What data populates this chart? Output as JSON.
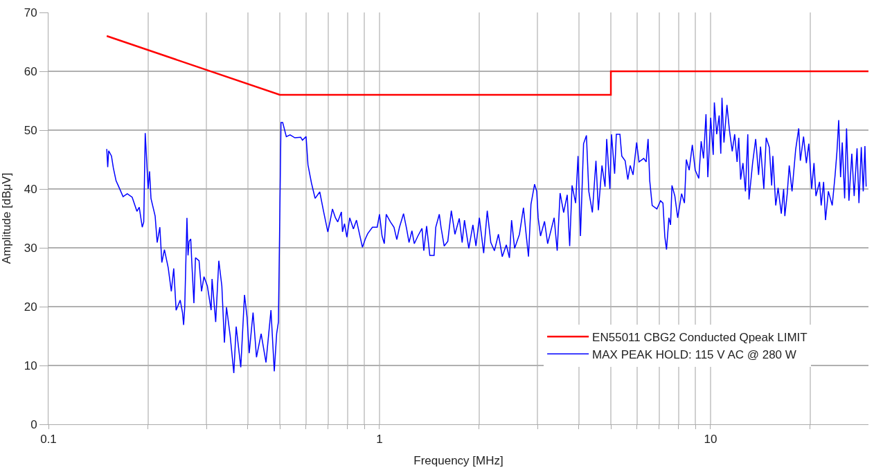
{
  "chart_data": {
    "type": "line",
    "xlabel": "Frequency [MHz]",
    "ylabel": "Amplitude [dBμV]",
    "log": "x",
    "xlim": [
      0.1,
      30
    ],
    "ylim": [
      0,
      70
    ],
    "xticks": [
      0.1,
      {
        "value": 0.2,
        "label": null
      },
      {
        "value": 0.3,
        "label": null
      },
      {
        "value": 0.4,
        "label": null
      },
      {
        "value": 0.5,
        "label": null
      },
      {
        "value": 0.6,
        "label": null
      },
      {
        "value": 0.7,
        "label": null
      },
      {
        "value": 0.8,
        "label": null
      },
      {
        "value": 0.9,
        "label": null
      },
      1,
      {
        "value": 2,
        "label": null
      },
      {
        "value": 3,
        "label": null
      },
      {
        "value": 4,
        "label": null
      },
      {
        "value": 5,
        "label": null
      },
      {
        "value": 6,
        "label": null
      },
      {
        "value": 7,
        "label": null
      },
      {
        "value": 8,
        "label": null
      },
      {
        "value": 9,
        "label": null
      },
      10,
      {
        "value": 20,
        "label": null
      }
    ],
    "yticks": [
      0,
      10,
      20,
      30,
      40,
      50,
      60,
      70
    ],
    "grid": true,
    "legend": "bottom right",
    "series": [
      {
        "name": "EN55011 CBG2 Conducted Qpeak LIMIT",
        "color": "#ff0000",
        "x": [
          0.15,
          0.5,
          5,
          5,
          30
        ],
        "values": [
          66,
          56,
          56,
          60,
          60
        ]
      },
      {
        "name": "MAX PEAK HOLD: 115 V AC @ 280 W",
        "color": "#0000ff",
        "x": [
          0.15,
          0.151,
          0.152,
          0.155,
          0.157,
          0.16,
          0.163,
          0.168,
          0.173,
          0.179,
          0.185,
          0.188,
          0.192,
          0.194,
          0.196,
          0.198,
          0.2,
          0.202,
          0.204,
          0.21,
          0.213,
          0.217,
          0.22,
          0.224,
          0.23,
          0.235,
          0.239,
          0.243,
          0.25,
          0.254,
          0.256,
          0.258,
          0.262,
          0.264,
          0.266,
          0.269,
          0.271,
          0.275,
          0.278,
          0.285,
          0.29,
          0.295,
          0.302,
          0.31,
          0.312,
          0.32,
          0.327,
          0.334,
          0.34,
          0.345,
          0.354,
          0.363,
          0.369,
          0.381,
          0.391,
          0.398,
          0.404,
          0.415,
          0.425,
          0.439,
          0.454,
          0.47,
          0.481,
          0.489,
          0.495,
          0.499,
          0.504,
          0.51,
          0.523,
          0.537,
          0.555,
          0.578,
          0.585,
          0.6,
          0.608,
          0.623,
          0.639,
          0.66,
          0.677,
          0.698,
          0.709,
          0.721,
          0.736,
          0.748,
          0.767,
          0.773,
          0.784,
          0.797,
          0.813,
          0.834,
          0.852,
          0.872,
          0.888,
          0.906,
          0.921,
          0.952,
          0.984,
          1.0,
          1.018,
          1.034,
          1.048,
          1.079,
          1.106,
          1.128,
          1.149,
          1.182,
          1.208,
          1.228,
          1.253,
          1.274,
          1.306,
          1.344,
          1.361,
          1.388,
          1.419,
          1.462,
          1.479,
          1.516,
          1.534,
          1.568,
          1.608,
          1.648,
          1.69,
          1.742,
          1.777,
          1.806,
          1.861,
          1.915,
          1.956,
          2.003,
          2.064,
          2.116,
          2.169,
          2.224,
          2.287,
          2.349,
          2.416,
          2.469,
          2.506,
          2.56,
          2.647,
          2.722,
          2.773,
          2.819,
          2.868,
          2.941,
          2.985,
          3.015,
          3.065,
          3.152,
          3.221,
          3.369,
          3.442,
          3.512,
          3.6,
          3.691,
          3.754,
          3.817,
          3.913,
          3.979,
          4.047,
          4.135,
          4.218,
          4.288,
          4.396,
          4.507,
          4.584,
          4.7,
          4.801,
          4.857,
          4.966,
          5.022,
          5.132,
          5.194,
          5.325,
          5.394,
          5.522,
          5.625,
          5.719,
          5.834,
          5.981,
          6.08,
          6.285,
          6.391,
          6.477,
          6.552,
          6.664,
          6.888,
          7.062,
          7.183,
          7.276,
          7.364,
          7.486,
          7.573,
          7.648,
          7.802,
          7.959,
          8.176,
          8.341,
          8.45,
          8.621,
          8.811,
          8.989,
          9.217,
          9.371,
          9.526,
          9.69,
          9.815,
          10.01,
          10.19,
          10.27,
          10.44,
          10.62,
          10.74,
          10.83,
          10.98,
          11.21,
          11.4,
          11.63,
          11.83,
          12.03,
          12.17,
          12.33,
          12.53,
          12.75,
          12.96,
          13.07,
          13.4,
          13.69,
          13.97,
          14.16,
          14.49,
          14.73,
          15.05,
          15.3,
          15.43,
          15.74,
          16.0,
          16.36,
          16.63,
          16.77,
          17.05,
          17.29,
          17.63,
          18.08,
          18.47,
          18.68,
          19.1,
          19.48,
          19.81,
          20.21,
          20.54,
          20.82,
          21.35,
          21.59,
          21.96,
          22.25,
          22.7,
          23.32,
          23.79,
          24.1,
          24.39,
          24.71,
          25.0,
          25.42,
          25.76,
          26.19,
          26.72,
          27.16,
          27.71,
          28.08,
          28.54,
          28.93,
          29.27,
          29.52
        ],
        "values": [
          46.8,
          43.7,
          46.5,
          45.6,
          43.6,
          41.4,
          40.4,
          38.7,
          39.2,
          38.6,
          36.2,
          36.9,
          33.5,
          34.4,
          49.5,
          44.8,
          40.0,
          43.0,
          38.4,
          35.4,
          30.9,
          33.5,
          27.5,
          29.7,
          26.6,
          22.6,
          26.5,
          19.4,
          21.1,
          19.0,
          16.9,
          19.9,
          35.1,
          28.7,
          31.1,
          31.5,
          27.5,
          20.6,
          28.3,
          27.8,
          22.6,
          25.1,
          23.5,
          19.4,
          24.7,
          17.4,
          27.8,
          23.5,
          13.9,
          19.9,
          15.0,
          8.7,
          16.6,
          9.7,
          22.0,
          18.2,
          12.1,
          19.0,
          11.4,
          15.4,
          10.5,
          19.4,
          9.0,
          15.4,
          17.4,
          32.3,
          51.3,
          51.3,
          48.9,
          49.2,
          48.7,
          48.8,
          48.3,
          48.9,
          44.1,
          41.0,
          38.4,
          39.5,
          36.3,
          32.7,
          34.5,
          36.6,
          35.1,
          34.4,
          36.1,
          32.7,
          34.1,
          31.8,
          35.1,
          33.2,
          34.7,
          32.1,
          30.1,
          31.5,
          32.4,
          33.5,
          33.5,
          35.7,
          32.0,
          30.7,
          35.7,
          34.4,
          33.5,
          31.4,
          33.5,
          35.8,
          33.2,
          30.9,
          32.9,
          30.7,
          32.0,
          33.3,
          29.5,
          33.7,
          28.7,
          28.7,
          33.5,
          35.7,
          33.5,
          30.3,
          31.1,
          36.3,
          32.3,
          35.0,
          30.9,
          34.7,
          29.9,
          33.9,
          30.3,
          35.1,
          29.1,
          36.3,
          30.9,
          29.5,
          32.3,
          28.5,
          30.5,
          28.3,
          34.7,
          29.9,
          32.3,
          36.8,
          32.3,
          28.5,
          37.4,
          40.8,
          39.6,
          35.1,
          32.0,
          34.5,
          30.7,
          35.1,
          29.5,
          39.3,
          36.0,
          39.0,
          30.3,
          40.6,
          37.6,
          45.6,
          32.0,
          47.7,
          49.1,
          39.6,
          36.0,
          44.8,
          36.4,
          44.0,
          40.4,
          48.5,
          40.0,
          49.3,
          42.6,
          49.3,
          49.3,
          45.6,
          44.8,
          41.6,
          44.0,
          42.4,
          47.9,
          44.6,
          45.2,
          44.6,
          48.5,
          41.4,
          37.2,
          36.6,
          38.0,
          37.6,
          31.9,
          29.7,
          35.1,
          33.9,
          40.6,
          38.8,
          35.1,
          39.2,
          37.6,
          45.0,
          43.2,
          47.5,
          43.2,
          41.8,
          48.1,
          45.2,
          52.7,
          42.0,
          52.1,
          45.8,
          54.7,
          49.3,
          52.5,
          46.0,
          55.5,
          47.9,
          54.3,
          50.1,
          46.4,
          49.3,
          44.6,
          48.7,
          41.6,
          44.4,
          39.6,
          49.3,
          38.2,
          44.4,
          48.5,
          42.4,
          47.2,
          40.0,
          48.7,
          47.1,
          40.6,
          45.6,
          37.2,
          40.2,
          35.8,
          40.0,
          35.4,
          39.2,
          44.0,
          39.6,
          46.7,
          50.3,
          44.8,
          48.9,
          44.4,
          47.7,
          40.0,
          44.4,
          38.8,
          41.2,
          37.2,
          41.2,
          34.7,
          39.6,
          37.2,
          42.4,
          46.4,
          51.7,
          42.0,
          47.9,
          38.4,
          50.3,
          38.0,
          46.0,
          38.8,
          46.9,
          37.6,
          47.1,
          39.6,
          47.3,
          40.4
        ]
      }
    ]
  }
}
